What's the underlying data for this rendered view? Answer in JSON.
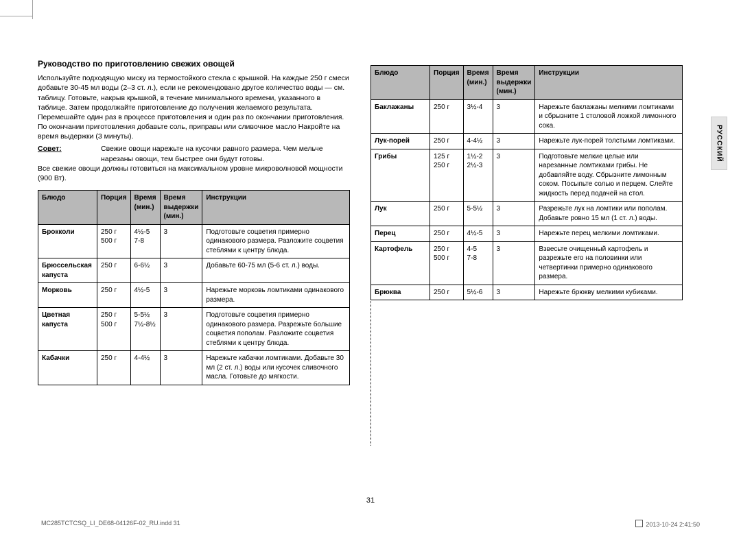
{
  "heading": "Руководство по приготовлению свежих овощей",
  "intro": "Используйте подходящую миску из термостойкого стекла с крышкой. На каждые 250 г смеси добавьте 30-45 мл воды (2–3 ст. л.), если не рекомендовано другое количество воды — см. таблицу. Готовьте, накрыв крышкой, в течение минимального времени, указанного в таблице. Затем продолжайте приготовление до получения желаемого результата. Перемешайте один раз в процессе приготовления и один раз по окончании приготовления. По окончании приготовления добавьте соль, приправы или сливочное масло Накройте на время выдержки (3 минуты).",
  "tip_label": "Совет:",
  "tip_text": "Свежие овощи нарежьте на кусочки равного размера. Чем мельче нарезаны овощи, тем быстрее они будут готовы.",
  "note": "Все свежие овощи должны готовиться на максимальном уровне микроволновой мощности (900 Вт).",
  "headers": {
    "dish": "Блюдо",
    "portion": "Порция",
    "time": "Время (мин.)",
    "stand": "Время выдержки (мин.)",
    "instructions": "Инструкции"
  },
  "left_rows": [
    {
      "dish": "Брокколи",
      "portion": "250 г\n500 г",
      "time": "4½-5\n7-8",
      "stand": "3",
      "instr": "Подготовьте соцветия примерно одинакового размера. Разложите соцветия стеблями к центру блюда."
    },
    {
      "dish": "Брюссельская капуста",
      "portion": "250 г",
      "time": "6-6½",
      "stand": "3",
      "instr": "Добавьте 60-75 мл (5-6 ст. л.) воды."
    },
    {
      "dish": "Морковь",
      "portion": "250 г",
      "time": "4½-5",
      "stand": "3",
      "instr": "Нарежьте морковь ломтиками одинакового размера."
    },
    {
      "dish": "Цветная капуста",
      "portion": "250 г\n500 г",
      "time": "5-5½\n7½-8½",
      "stand": "3",
      "instr": "Подготовьте соцветия примерно одинакового размера. Разрежьте большие соцветия пополам. Разложите соцветия стеблями к центру блюда."
    },
    {
      "dish": "Кабачки",
      "portion": "250 г",
      "time": "4-4½",
      "stand": "3",
      "instr": "Нарежьте кабачки ломтиками. Добавьте 30 мл (2 ст. л.) воды или кусочек сливочного масла. Готовьте до мягкости."
    }
  ],
  "right_rows": [
    {
      "dish": "Баклажаны",
      "portion": "250 г",
      "time": "3½-4",
      "stand": "3",
      "instr": "Нарежьте баклажаны мелкими ломтиками и сбрызните 1 столовой ложкой лимонного сока."
    },
    {
      "dish": "Лук-порей",
      "portion": "250 г",
      "time": "4-4½",
      "stand": "3",
      "instr": "Нарежьте лук-порей толстыми ломтиками."
    },
    {
      "dish": "Грибы",
      "portion": "125 г\n250 г",
      "time": "1½-2\n2½-3",
      "stand": "3",
      "instr": "Подготовьте мелкие целые или нарезанные ломтиками грибы. Не добавляйте воду. Сбрызните лимонным соком. Посыпьте солью и перцем. Слейте жидкость перед подачей на стол."
    },
    {
      "dish": "Лук",
      "portion": "250 г",
      "time": "5-5½",
      "stand": "3",
      "instr": "Разрежьте лук на ломтики или пополам. Добавьте ровно 15 мл (1 ст. л.) воды."
    },
    {
      "dish": "Перец",
      "portion": "250 г",
      "time": "4½-5",
      "stand": "3",
      "instr": "Нарежьте перец мелкими ломтиками."
    },
    {
      "dish": "Картофель",
      "portion": "250 г\n500 г",
      "time": "4-5\n7-8",
      "stand": "3",
      "instr": "Взвесьте очищенный картофель и разрежьте его на половинки или четвертинки примерно одинакового размера."
    },
    {
      "dish": "Брюква",
      "portion": "250 г",
      "time": "5½-6",
      "stand": "3",
      "instr": "Нарежьте брюкву мелкими кубиками."
    }
  ],
  "side_tab": "РУССКИЙ",
  "page_number": "31",
  "footer_left": "MC285TCTCSQ_LI_DE68-04126F-02_RU.indd   31",
  "footer_right": "2013-10-24     2:41:50"
}
